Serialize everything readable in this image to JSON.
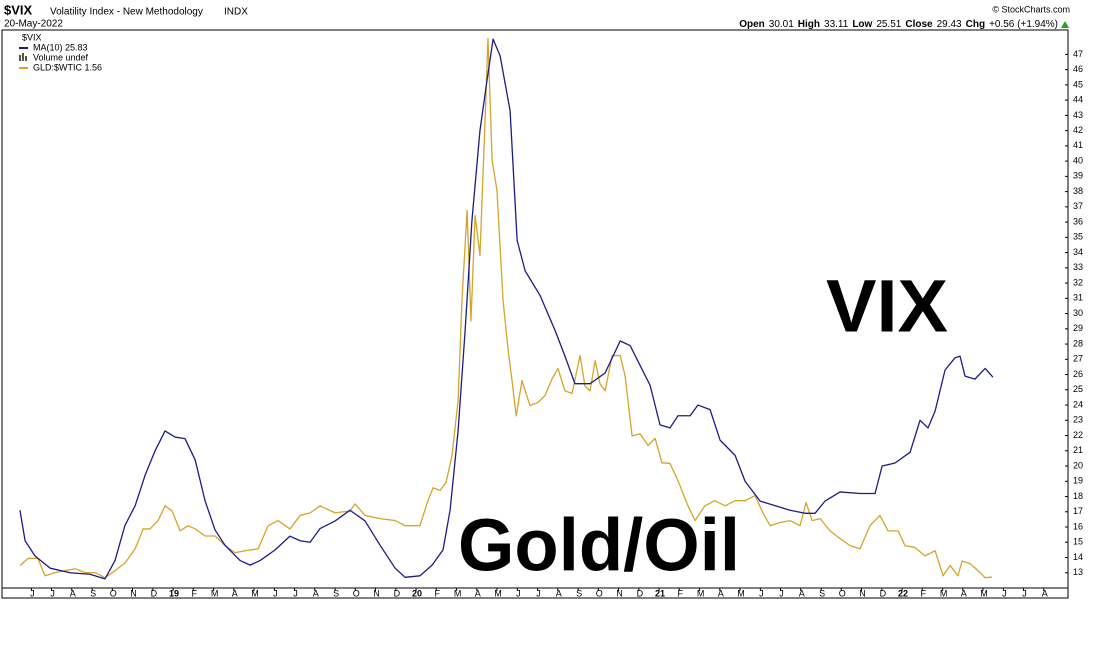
{
  "chart_data": {
    "type": "line",
    "title": "$VIX",
    "subtitle": "Volatility Index - New Methodology",
    "exchange": "INDX",
    "date": "20-May-2022",
    "credit": "© StockCharts.com",
    "quote": [
      "Open",
      30.01,
      "High",
      33.11,
      "Low",
      25.51,
      "Close",
      29.43,
      "Chg",
      "+0.56 (+1.94%)"
    ],
    "legend_title": "$VIX",
    "legend_extra": "Volume undef",
    "annotations": [
      {
        "text": "VIX",
        "color": "#1f3864"
      },
      {
        "text": "Gold/Oil",
        "color": "#f5b800"
      }
    ],
    "xlim": [
      2018.296,
      2022.683
    ],
    "xticks": [
      {
        "value": 2018.417,
        "label": "J"
      },
      {
        "value": 2018.5,
        "label": "J"
      },
      {
        "value": 2018.583,
        "label": "A"
      },
      {
        "value": 2018.667,
        "label": "S"
      },
      {
        "value": 2018.75,
        "label": "O"
      },
      {
        "value": 2018.833,
        "label": "N"
      },
      {
        "value": 2018.917,
        "label": "D"
      },
      {
        "value": 2019,
        "label": "19"
      },
      {
        "value": 2019.083,
        "label": "F"
      },
      {
        "value": 2019.167,
        "label": "M"
      },
      {
        "value": 2019.25,
        "label": "A"
      },
      {
        "value": 2019.333,
        "label": "M"
      },
      {
        "value": 2019.417,
        "label": "J"
      },
      {
        "value": 2019.5,
        "label": "J"
      },
      {
        "value": 2019.583,
        "label": "A"
      },
      {
        "value": 2019.667,
        "label": "S"
      },
      {
        "value": 2019.75,
        "label": "O"
      },
      {
        "value": 2019.833,
        "label": "N"
      },
      {
        "value": 2019.917,
        "label": "D"
      },
      {
        "value": 2020,
        "label": "20"
      },
      {
        "value": 2020.083,
        "label": "F"
      },
      {
        "value": 2020.167,
        "label": "M"
      },
      {
        "value": 2020.25,
        "label": "A"
      },
      {
        "value": 2020.333,
        "label": "M"
      },
      {
        "value": 2020.417,
        "label": "J"
      },
      {
        "value": 2020.5,
        "label": "J"
      },
      {
        "value": 2020.583,
        "label": "A"
      },
      {
        "value": 2020.667,
        "label": "S"
      },
      {
        "value": 2020.75,
        "label": "O"
      },
      {
        "value": 2020.833,
        "label": "N"
      },
      {
        "value": 2020.917,
        "label": "D"
      },
      {
        "value": 2021,
        "label": "21"
      },
      {
        "value": 2021.083,
        "label": "F"
      },
      {
        "value": 2021.167,
        "label": "M"
      },
      {
        "value": 2021.25,
        "label": "A"
      },
      {
        "value": 2021.333,
        "label": "M"
      },
      {
        "value": 2021.417,
        "label": "J"
      },
      {
        "value": 2021.5,
        "label": "J"
      },
      {
        "value": 2021.583,
        "label": "A"
      },
      {
        "value": 2021.667,
        "label": "S"
      },
      {
        "value": 2021.75,
        "label": "O"
      },
      {
        "value": 2021.833,
        "label": "N"
      },
      {
        "value": 2021.917,
        "label": "D"
      },
      {
        "value": 2022,
        "label": "22"
      },
      {
        "value": 2022.083,
        "label": "F"
      },
      {
        "value": 2022.167,
        "label": "M"
      },
      {
        "value": 2022.25,
        "label": "A"
      },
      {
        "value": 2022.333,
        "label": "M"
      },
      {
        "value": 2022.417,
        "label": "J"
      },
      {
        "value": 2022.5,
        "label": "J"
      },
      {
        "value": 2022.583,
        "label": "A"
      }
    ],
    "ylim": [
      12,
      48.6
    ],
    "yticks": [
      13,
      14,
      15,
      16,
      17,
      18,
      19,
      20,
      21,
      22,
      23,
      24,
      25,
      26,
      27,
      28,
      29,
      30,
      31,
      32,
      33,
      34,
      35,
      36,
      37,
      38,
      39,
      40,
      41,
      42,
      43,
      44,
      45,
      46,
      47
    ],
    "y2lim": [
      1.39,
      10.08
    ],
    "grid": false,
    "series": [
      {
        "name": "MA(10) 25.83",
        "color": "#1c1c84",
        "x": [
          2018.37,
          2018.391,
          2018.432,
          2018.494,
          2018.576,
          2018.658,
          2018.72,
          2018.761,
          2018.802,
          2018.844,
          2018.885,
          2018.926,
          2018.967,
          2019.008,
          2019.049,
          2019.091,
          2019.132,
          2019.173,
          2019.214,
          2019.276,
          2019.317,
          2019.358,
          2019.42,
          2019.481,
          2019.523,
          2019.564,
          2019.605,
          2019.667,
          2019.728,
          2019.79,
          2019.852,
          2019.914,
          2019.955,
          2020.016,
          2020.066,
          2020.111,
          2020.14,
          2020.173,
          2020.202,
          2020.23,
          2020.263,
          2020.292,
          2020.317,
          2020.346,
          2020.387,
          2020.416,
          2020.449,
          2020.51,
          2020.572,
          2020.613,
          2020.654,
          2020.716,
          2020.778,
          2020.84,
          2020.881,
          2020.922,
          2020.963,
          2021.004,
          2021.045,
          2021.078,
          2021.128,
          2021.16,
          2021.21,
          2021.251,
          2021.313,
          2021.354,
          2021.416,
          2021.477,
          2021.539,
          2021.601,
          2021.642,
          2021.683,
          2021.745,
          2021.827,
          2021.889,
          2021.918,
          2021.971,
          2022.033,
          2022.074,
          2022.107,
          2022.136,
          2022.177,
          2022.218,
          2022.239,
          2022.259,
          2022.3,
          2022.342,
          2022.374
        ],
        "values": [
          17.1,
          15.1,
          14.1,
          13.3,
          13.0,
          12.9,
          12.6,
          13.8,
          16.1,
          17.4,
          19.4,
          21.0,
          22.3,
          21.9,
          21.8,
          20.4,
          17.7,
          15.8,
          14.8,
          13.8,
          13.5,
          13.8,
          14.5,
          15.4,
          15.1,
          15.0,
          15.9,
          16.4,
          17.1,
          16.4,
          14.8,
          13.3,
          12.7,
          12.8,
          13.5,
          14.5,
          17.1,
          22.3,
          28.9,
          36.1,
          42.0,
          45.3,
          48.0,
          46.9,
          43.3,
          34.8,
          32.8,
          31.2,
          28.9,
          27.2,
          25.4,
          25.4,
          26.1,
          28.2,
          27.9,
          26.6,
          25.3,
          22.7,
          22.5,
          23.3,
          23.3,
          24.0,
          23.7,
          21.7,
          20.7,
          19.0,
          17.7,
          17.4,
          17.1,
          16.9,
          16.9,
          17.7,
          18.3,
          18.2,
          18.2,
          20.0,
          20.2,
          20.9,
          23.0,
          22.5,
          23.6,
          26.3,
          27.1,
          27.2,
          25.9,
          25.7,
          26.4,
          25.83
        ]
      },
      {
        "name": "GLD:$WTIC 1.56",
        "color": "#d4a52a",
        "axis": "y2",
        "x": [
          2018.37,
          2018.403,
          2018.444,
          2018.473,
          2018.514,
          2018.556,
          2018.597,
          2018.638,
          2018.679,
          2018.72,
          2018.761,
          2018.802,
          2018.844,
          2018.877,
          2018.905,
          2018.938,
          2018.967,
          2018.996,
          2019.029,
          2019.062,
          2019.091,
          2019.132,
          2019.173,
          2019.214,
          2019.255,
          2019.296,
          2019.35,
          2019.391,
          2019.432,
          2019.481,
          2019.523,
          2019.564,
          2019.605,
          2019.667,
          2019.728,
          2019.749,
          2019.79,
          2019.852,
          2019.914,
          2019.955,
          2020.016,
          2020.049,
          2020.07,
          2020.099,
          2020.123,
          2020.148,
          2020.173,
          2020.189,
          2020.21,
          2020.226,
          2020.243,
          2020.263,
          2020.284,
          2020.296,
          2020.313,
          2020.333,
          2020.358,
          2020.379,
          2020.395,
          2020.412,
          2020.436,
          2020.469,
          2020.502,
          2020.531,
          2020.56,
          2020.584,
          2020.613,
          2020.642,
          2020.675,
          2020.695,
          2020.716,
          2020.737,
          2020.757,
          2020.778,
          2020.807,
          2020.84,
          2020.86,
          2020.889,
          2020.922,
          2020.955,
          2020.984,
          2021.012,
          2021.045,
          2021.078,
          2021.119,
          2021.148,
          2021.189,
          2021.23,
          2021.272,
          2021.313,
          2021.354,
          2021.395,
          2021.424,
          2021.457,
          2021.498,
          2021.539,
          2021.58,
          2021.605,
          2021.63,
          2021.663,
          2021.704,
          2021.745,
          2021.786,
          2021.827,
          2021.868,
          2021.909,
          2021.942,
          2021.984,
          2022.012,
          2022.053,
          2022.095,
          2022.136,
          2022.169,
          2022.198,
          2022.23,
          2022.247,
          2022.28,
          2022.313,
          2022.342,
          2022.37
        ],
        "values": [
          1.74,
          1.85,
          1.85,
          1.58,
          1.63,
          1.66,
          1.69,
          1.63,
          1.63,
          1.55,
          1.66,
          1.78,
          2.0,
          2.31,
          2.31,
          2.44,
          2.67,
          2.59,
          2.28,
          2.36,
          2.31,
          2.2,
          2.2,
          2.05,
          1.94,
          1.97,
          2.0,
          2.36,
          2.44,
          2.31,
          2.52,
          2.56,
          2.67,
          2.56,
          2.59,
          2.7,
          2.52,
          2.47,
          2.44,
          2.36,
          2.36,
          2.75,
          2.95,
          2.91,
          3.03,
          3.45,
          4.31,
          5.87,
          7.27,
          5.55,
          7.19,
          6.57,
          8.67,
          9.95,
          8.05,
          7.58,
          5.87,
          5.09,
          4.62,
          4.07,
          4.62,
          4.23,
          4.28,
          4.39,
          4.65,
          4.81,
          4.46,
          4.42,
          5.01,
          4.54,
          4.46,
          4.93,
          4.57,
          4.46,
          5.01,
          5.01,
          4.7,
          3.76,
          3.79,
          3.61,
          3.72,
          3.34,
          3.33,
          3.06,
          2.67,
          2.44,
          2.67,
          2.75,
          2.67,
          2.75,
          2.75,
          2.83,
          2.59,
          2.36,
          2.41,
          2.44,
          2.36,
          2.72,
          2.44,
          2.47,
          2.28,
          2.16,
          2.05,
          2.0,
          2.36,
          2.52,
          2.28,
          2.28,
          2.05,
          2.02,
          1.89,
          1.97,
          1.58,
          1.74,
          1.58,
          1.81,
          1.77,
          1.66,
          1.55,
          1.56
        ]
      }
    ]
  }
}
